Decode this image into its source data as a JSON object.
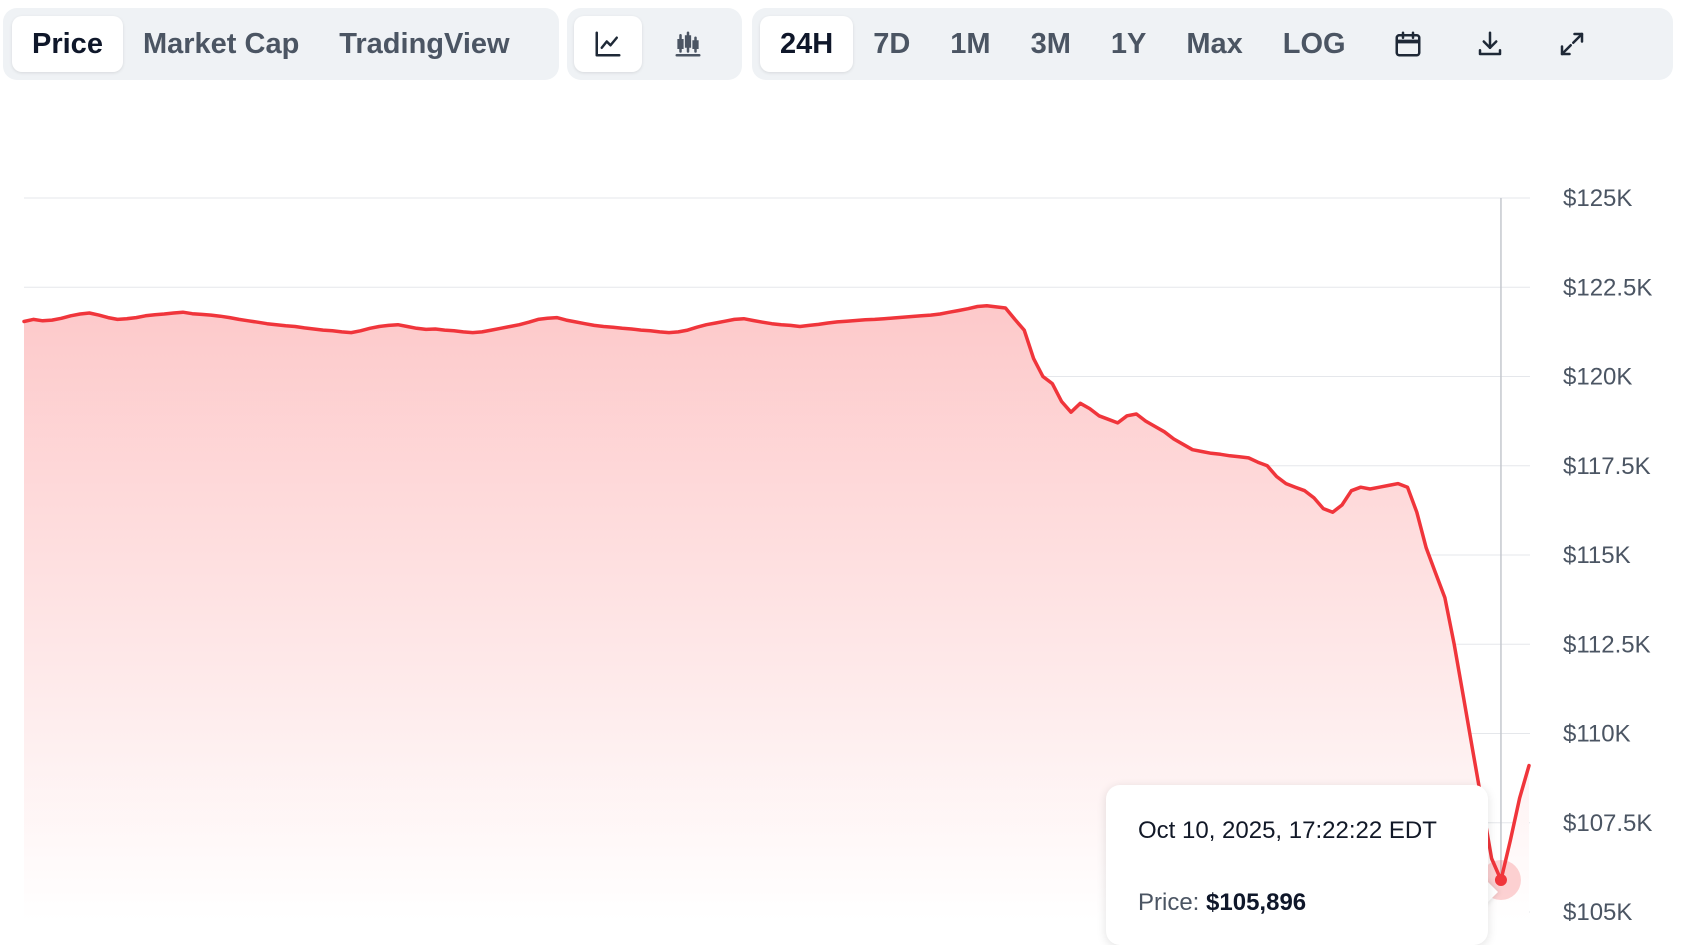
{
  "toolbar": {
    "type_tabs": [
      {
        "label": "Price",
        "active": true
      },
      {
        "label": "Market Cap",
        "active": false
      },
      {
        "label": "TradingView",
        "active": false
      }
    ],
    "chart_types": [
      {
        "icon": "line-chart-icon",
        "active": true
      },
      {
        "icon": "candlestick-chart-icon",
        "active": false
      }
    ],
    "ranges": [
      {
        "label": "24H",
        "active": true
      },
      {
        "label": "7D",
        "active": false
      },
      {
        "label": "1M",
        "active": false
      },
      {
        "label": "3M",
        "active": false
      },
      {
        "label": "1Y",
        "active": false
      },
      {
        "label": "Max",
        "active": false
      },
      {
        "label": "LOG",
        "active": false
      }
    ],
    "actions": [
      "calendar-icon",
      "download-icon",
      "fullscreen-icon"
    ]
  },
  "tooltip": {
    "time": "Oct 10, 2025, 17:22:22 EDT",
    "price_label": "Price:",
    "price_value": "$105,896"
  },
  "colors": {
    "line": "#f0353b",
    "fill_top": "#fdc9ca",
    "grid": "#e5e7eb",
    "crosshair": "#c4c8ce"
  },
  "chart_data": {
    "type": "area",
    "title": "",
    "xlabel": "",
    "ylabel": "",
    "ylim": [
      105000,
      125000
    ],
    "yticks": [
      "$105K",
      "$107.5K",
      "$110K",
      "$112.5K",
      "$115K",
      "$117.5K",
      "$120K",
      "$122.5K",
      "$125K"
    ],
    "grid": true,
    "y": [
      121540,
      121600,
      121560,
      121580,
      121630,
      121700,
      121750,
      121780,
      121720,
      121650,
      121600,
      121620,
      121650,
      121700,
      121730,
      121750,
      121780,
      121800,
      121760,
      121740,
      121720,
      121690,
      121650,
      121600,
      121560,
      121520,
      121480,
      121450,
      121420,
      121400,
      121360,
      121330,
      121300,
      121280,
      121250,
      121230,
      121280,
      121350,
      121400,
      121430,
      121450,
      121400,
      121350,
      121320,
      121330,
      121300,
      121280,
      121250,
      121230,
      121250,
      121300,
      121350,
      121400,
      121450,
      121520,
      121600,
      121630,
      121650,
      121580,
      121530,
      121480,
      121430,
      121400,
      121380,
      121350,
      121330,
      121300,
      121280,
      121250,
      121230,
      121250,
      121300,
      121380,
      121450,
      121500,
      121550,
      121600,
      121620,
      121570,
      121520,
      121480,
      121450,
      121430,
      121400,
      121430,
      121460,
      121500,
      121530,
      121550,
      121570,
      121590,
      121600,
      121620,
      121640,
      121660,
      121680,
      121700,
      121720,
      121750,
      121800,
      121850,
      121900,
      121960,
      121980,
      121950,
      121920,
      121600,
      121300,
      120500,
      120000,
      119800,
      119300,
      119000,
      119250,
      119100,
      118900,
      118800,
      118700,
      118900,
      118950,
      118750,
      118600,
      118450,
      118250,
      118100,
      117950,
      117900,
      117850,
      117820,
      117780,
      117750,
      117720,
      117600,
      117500,
      117200,
      117000,
      116900,
      116800,
      116600,
      116300,
      116200,
      116400,
      116800,
      116900,
      116850,
      116900,
      116950,
      117000,
      116900,
      116200,
      115200,
      114500,
      113800,
      112500,
      111000,
      109500,
      108000,
      106500,
      105896,
      107000,
      108200,
      109100
    ]
  }
}
